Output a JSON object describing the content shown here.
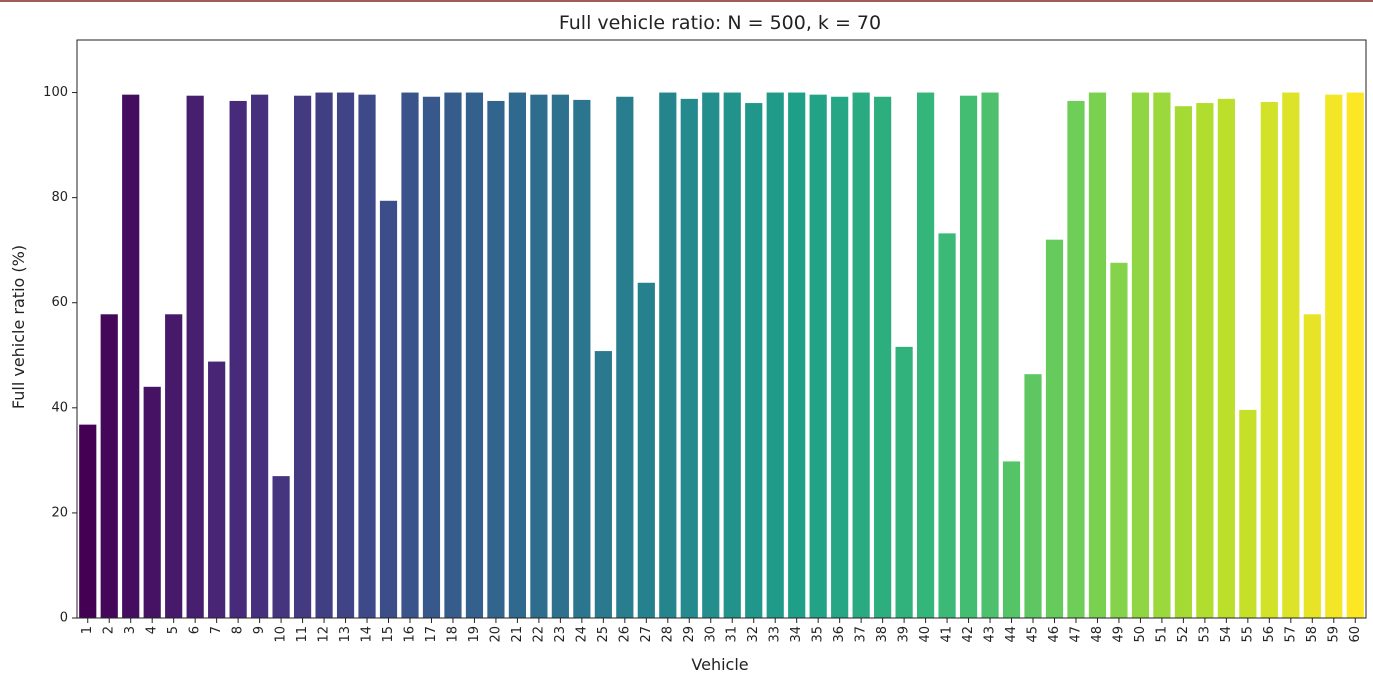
{
  "chart_data": {
    "type": "bar",
    "title": "Full vehicle ratio: N = 500, k = 70",
    "xlabel": "Vehicle",
    "ylabel": "Full vehicle ratio (%)",
    "ylim": [
      0,
      110
    ],
    "yticks": [
      0,
      20,
      40,
      60,
      80,
      100
    ],
    "grid": false,
    "legend": "none",
    "colormap": "viridis",
    "categories": [
      "1",
      "2",
      "3",
      "4",
      "5",
      "6",
      "7",
      "8",
      "9",
      "10",
      "11",
      "12",
      "13",
      "14",
      "15",
      "16",
      "17",
      "18",
      "19",
      "20",
      "21",
      "22",
      "23",
      "24",
      "25",
      "26",
      "27",
      "28",
      "29",
      "30",
      "31",
      "32",
      "33",
      "34",
      "35",
      "36",
      "37",
      "38",
      "39",
      "40",
      "41",
      "42",
      "43",
      "44",
      "45",
      "46",
      "47",
      "48",
      "49",
      "50",
      "51",
      "52",
      "53",
      "54",
      "55",
      "56",
      "57",
      "58",
      "59",
      "60"
    ],
    "values": [
      36.8,
      57.8,
      99.6,
      44.0,
      57.8,
      99.4,
      48.8,
      98.4,
      99.6,
      27.0,
      99.4,
      100.0,
      100.0,
      99.6,
      79.4,
      100.0,
      99.2,
      100.0,
      100.0,
      98.4,
      100.0,
      99.6,
      99.6,
      98.6,
      50.8,
      99.2,
      63.8,
      100.0,
      98.8,
      100.0,
      100.0,
      98.0,
      100.0,
      100.0,
      99.6,
      99.2,
      100.0,
      99.2,
      51.6,
      100.0,
      73.2,
      99.4,
      100.0,
      29.8,
      46.4,
      72.0,
      98.4,
      100.0,
      67.6,
      100.0,
      100.0,
      97.4,
      98.0,
      98.8,
      39.6,
      98.2,
      100.0,
      57.8,
      99.6,
      100.0
    ]
  }
}
